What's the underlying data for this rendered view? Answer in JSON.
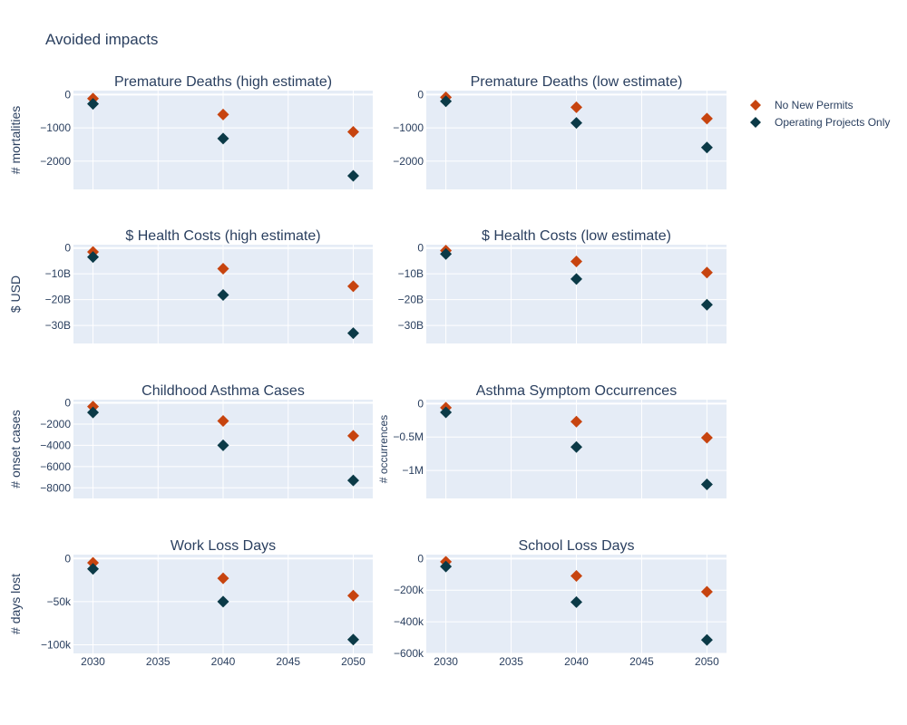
{
  "figure": {
    "title": "Avoided impacts",
    "colors": {
      "no_new_permits": "#c7440f",
      "operating_only": "#0b3a47",
      "plot_bg": "#e5ecf6",
      "grid": "#ffffff",
      "text": "#2a3f5f"
    }
  },
  "legend": {
    "items": [
      {
        "label": "No New Permits",
        "color": "#c7440f",
        "symbol": "diamond"
      },
      {
        "label": "Operating Projects Only",
        "color": "#0b3a47",
        "symbol": "diamond"
      }
    ]
  },
  "chart_data": [
    {
      "type": "scatter",
      "title": "Premature Deaths (high estimate)",
      "ylabel": "# mortalities",
      "x": [
        2030,
        2040,
        2050
      ],
      "xlim": [
        2028.5,
        2051.5
      ],
      "ylim": [
        -2850,
        120
      ],
      "yticks": [
        0,
        -1000,
        -2000
      ],
      "yticklabels": [
        "0",
        "−1000",
        "−2000"
      ],
      "series": [
        {
          "name": "No New Permits",
          "values": [
            -120,
            -600,
            -1120
          ]
        },
        {
          "name": "Operating Projects Only",
          "values": [
            -280,
            -1320,
            -2440
          ]
        }
      ]
    },
    {
      "type": "scatter",
      "title": "Premature Deaths (low estimate)",
      "ylabel": "",
      "x": [
        2030,
        2040,
        2050
      ],
      "xlim": [
        2028.5,
        2051.5
      ],
      "ylim": [
        -2850,
        120
      ],
      "yticks": [
        0,
        -1000,
        -2000
      ],
      "yticklabels": [
        "0",
        "−1000",
        "−2000"
      ],
      "series": [
        {
          "name": "No New Permits",
          "values": [
            -80,
            -380,
            -720
          ]
        },
        {
          "name": "Operating Projects Only",
          "values": [
            -200,
            -850,
            -1590
          ]
        }
      ]
    },
    {
      "type": "scatter",
      "title": "$ Health Costs (high estimate)",
      "ylabel": "$ USD",
      "x": [
        2030,
        2040,
        2050
      ],
      "xlim": [
        2028.5,
        2051.5
      ],
      "ylim": [
        -37000000000,
        1300000000
      ],
      "yticks": [
        0,
        -10000000000,
        -20000000000,
        -30000000000
      ],
      "yticklabels": [
        "0",
        "−10B",
        "−20B",
        "−30B"
      ],
      "series": [
        {
          "name": "No New Permits",
          "values": [
            -1500000000,
            -8000000000,
            -14800000000
          ]
        },
        {
          "name": "Operating Projects Only",
          "values": [
            -3500000000,
            -18200000000,
            -33000000000
          ]
        }
      ]
    },
    {
      "type": "scatter",
      "title": "$ Health Costs (low estimate)",
      "ylabel": "",
      "x": [
        2030,
        2040,
        2050
      ],
      "xlim": [
        2028.5,
        2051.5
      ],
      "ylim": [
        -37000000000,
        1300000000
      ],
      "yticks": [
        0,
        -10000000000,
        -20000000000,
        -30000000000
      ],
      "yticklabels": [
        "0",
        "−10B",
        "−20B",
        "−30B"
      ],
      "series": [
        {
          "name": "No New Permits",
          "values": [
            -1000000000,
            -5200000000,
            -9500000000
          ]
        },
        {
          "name": "Operating Projects Only",
          "values": [
            -2300000000,
            -12000000000,
            -22000000000
          ]
        }
      ]
    },
    {
      "type": "scatter",
      "title": "Childhood Asthma Cases",
      "ylabel": "# onset cases",
      "x": [
        2030,
        2040,
        2050
      ],
      "xlim": [
        2028.5,
        2051.5
      ],
      "ylim": [
        -9000,
        300
      ],
      "yticks": [
        0,
        -2000,
        -4000,
        -6000,
        -8000
      ],
      "yticklabels": [
        "0",
        "−2000",
        "−4000",
        "−6000",
        "−8000"
      ],
      "series": [
        {
          "name": "No New Permits",
          "values": [
            -350,
            -1700,
            -3100
          ]
        },
        {
          "name": "Operating Projects Only",
          "values": [
            -900,
            -4000,
            -7300
          ]
        }
      ]
    },
    {
      "type": "scatter",
      "title": "Asthma Symptom Occurrences",
      "ylabel": "# occurrences",
      "x": [
        2030,
        2040,
        2050
      ],
      "xlim": [
        2028.5,
        2051.5
      ],
      "ylim": [
        -1420000,
        60000
      ],
      "yticks": [
        0,
        -500000,
        -1000000
      ],
      "yticklabels": [
        "0",
        "−0.5M",
        "−1M"
      ],
      "series": [
        {
          "name": "No New Permits",
          "values": [
            -60000,
            -270000,
            -510000
          ]
        },
        {
          "name": "Operating Projects Only",
          "values": [
            -130000,
            -650000,
            -1210000
          ]
        }
      ]
    },
    {
      "type": "scatter",
      "title": "Work Loss Days",
      "ylabel": "# days lost",
      "x": [
        2030,
        2040,
        2050
      ],
      "xlim": [
        2028.5,
        2051.5
      ],
      "ylim": [
        -110000,
        4500
      ],
      "yticks": [
        0,
        -50000,
        -100000
      ],
      "yticklabels": [
        "0",
        "−50k",
        "−100k"
      ],
      "series": [
        {
          "name": "No New Permits",
          "values": [
            -5000,
            -23000,
            -43000
          ]
        },
        {
          "name": "Operating Projects Only",
          "values": [
            -12000,
            -50000,
            -94000
          ]
        }
      ]
    },
    {
      "type": "scatter",
      "title": "School Loss Days",
      "ylabel": "",
      "x": [
        2030,
        2040,
        2050
      ],
      "xlim": [
        2028.5,
        2051.5
      ],
      "ylim": [
        -600000,
        25000
      ],
      "yticks": [
        0,
        -200000,
        -400000,
        -600000
      ],
      "yticklabels": [
        "0",
        "−200k",
        "−400k",
        "−600k"
      ],
      "series": [
        {
          "name": "No New Permits",
          "values": [
            -20000,
            -110000,
            -210000
          ]
        },
        {
          "name": "Operating Projects Only",
          "values": [
            -50000,
            -275000,
            -515000
          ]
        }
      ]
    }
  ],
  "x_axis": {
    "ticks": [
      2030,
      2035,
      2040,
      2045,
      2050
    ],
    "ticklabels": [
      "2030",
      "2035",
      "2040",
      "2045",
      "2050"
    ]
  }
}
